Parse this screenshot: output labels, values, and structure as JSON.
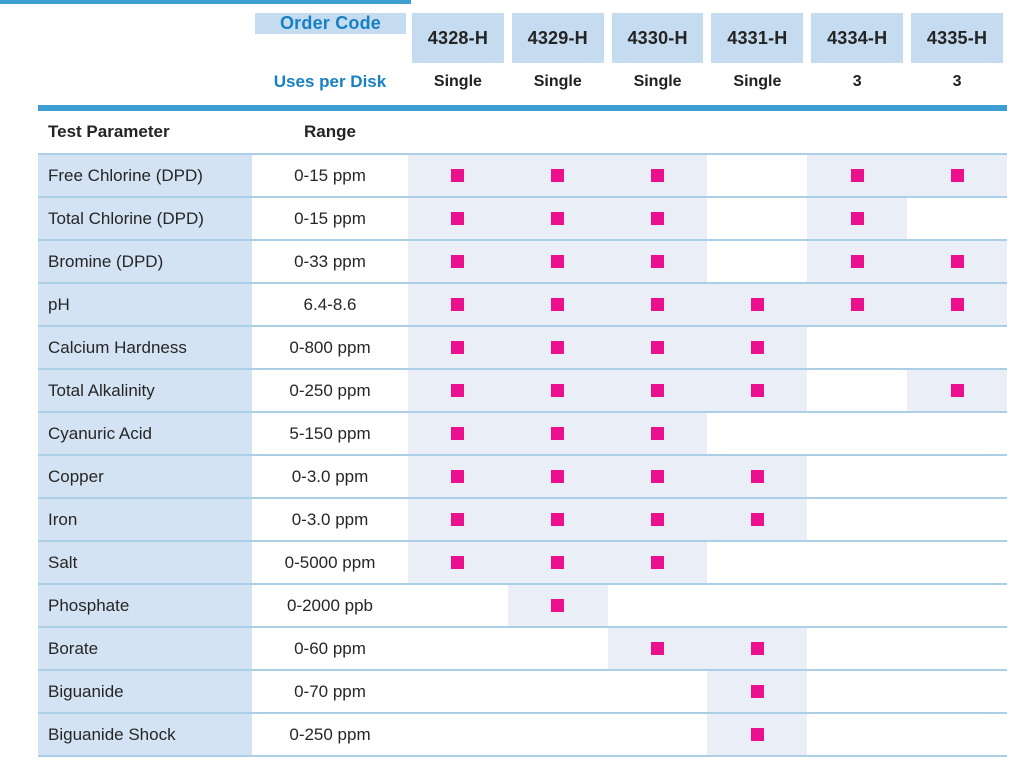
{
  "colors": {
    "accent_rule": "#3d9ed3",
    "header_box_bg": "#c5dcf0",
    "param_col_bg": "#d3e3f4",
    "marked_cell_bg": "#e9eef7",
    "row_separator": "#abcfe7",
    "blue_text": "#1780c2",
    "dark_text": "#242424",
    "marker": "#eb108d"
  },
  "header": {
    "order_code_label": "Order Code",
    "uses_per_disk_label": "Uses per Disk",
    "columns": [
      {
        "code": "4328-H",
        "uses": "Single"
      },
      {
        "code": "4329-H",
        "uses": "Single"
      },
      {
        "code": "4330-H",
        "uses": "Single"
      },
      {
        "code": "4331-H",
        "uses": "Single"
      },
      {
        "code": "4334-H",
        "uses": "3"
      },
      {
        "code": "4335-H",
        "uses": "3"
      }
    ]
  },
  "table": {
    "param_header": "Test Parameter",
    "range_header": "Range",
    "rows": [
      {
        "param": "Free Chlorine (DPD)",
        "range": "0-15 ppm",
        "marks": [
          true,
          true,
          true,
          false,
          true,
          true
        ]
      },
      {
        "param": "Total Chlorine (DPD)",
        "range": "0-15 ppm",
        "marks": [
          true,
          true,
          true,
          false,
          true,
          false
        ]
      },
      {
        "param": "Bromine (DPD)",
        "range": "0-33 ppm",
        "marks": [
          true,
          true,
          true,
          false,
          true,
          true
        ]
      },
      {
        "param": "pH",
        "range": "6.4-8.6",
        "marks": [
          true,
          true,
          true,
          true,
          true,
          true
        ]
      },
      {
        "param": "Calcium Hardness",
        "range": "0-800 ppm",
        "marks": [
          true,
          true,
          true,
          true,
          false,
          false
        ]
      },
      {
        "param": "Total Alkalinity",
        "range": "0-250 ppm",
        "marks": [
          true,
          true,
          true,
          true,
          false,
          true
        ]
      },
      {
        "param": "Cyanuric Acid",
        "range": "5-150 ppm",
        "marks": [
          true,
          true,
          true,
          false,
          false,
          false
        ]
      },
      {
        "param": "Copper",
        "range": "0-3.0 ppm",
        "marks": [
          true,
          true,
          true,
          true,
          false,
          false
        ]
      },
      {
        "param": "Iron",
        "range": "0-3.0 ppm",
        "marks": [
          true,
          true,
          true,
          true,
          false,
          false
        ]
      },
      {
        "param": "Salt",
        "range": "0-5000 ppm",
        "marks": [
          true,
          true,
          true,
          false,
          false,
          false
        ]
      },
      {
        "param": "Phosphate",
        "range": "0-2000 ppb",
        "marks": [
          false,
          true,
          false,
          false,
          false,
          false
        ]
      },
      {
        "param": "Borate",
        "range": "0-60 ppm",
        "marks": [
          false,
          false,
          true,
          true,
          false,
          false
        ]
      },
      {
        "param": "Biguanide",
        "range": "0-70 ppm",
        "marks": [
          false,
          false,
          false,
          true,
          false,
          false
        ]
      },
      {
        "param": "Biguanide Shock",
        "range": "0-250 ppm",
        "marks": [
          false,
          false,
          false,
          true,
          false,
          false
        ]
      }
    ]
  }
}
